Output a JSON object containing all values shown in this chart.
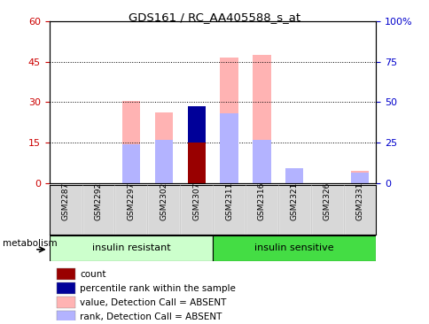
{
  "title": "GDS161 / RC_AA405588_s_at",
  "samples": [
    "GSM2287",
    "GSM2292",
    "GSM2297",
    "GSM2302",
    "GSM2307",
    "GSM2311",
    "GSM2316",
    "GSM2321",
    "GSM2326",
    "GSM2331"
  ],
  "value_absent": [
    0,
    0,
    30.5,
    26.0,
    15.5,
    46.5,
    47.5,
    5.0,
    0,
    4.5
  ],
  "rank_absent": [
    0,
    0,
    24.2,
    26.7,
    0,
    43.3,
    26.7,
    9.2,
    0,
    6.7
  ],
  "count": [
    0,
    0,
    0,
    0,
    15.0,
    0,
    0,
    0,
    0,
    0
  ],
  "percentile": [
    0,
    0,
    0,
    0,
    13.5,
    0,
    0,
    0,
    0,
    0
  ],
  "ylim": [
    0,
    60
  ],
  "y2lim": [
    0,
    100
  ],
  "yticks_left": [
    0,
    15,
    30,
    45,
    60
  ],
  "yticks_right": [
    0,
    25,
    50,
    75,
    100
  ],
  "ylabel_left_color": "#cc0000",
  "ylabel_right_color": "#0000cc",
  "color_value_absent": "#ffb3b3",
  "color_rank_absent": "#b3b3ff",
  "color_count": "#990000",
  "color_percentile": "#000099",
  "legend_items": [
    {
      "label": "count",
      "color": "#990000"
    },
    {
      "label": "percentile rank within the sample",
      "color": "#000099"
    },
    {
      "label": "value, Detection Call = ABSENT",
      "color": "#ffb3b3"
    },
    {
      "label": "rank, Detection Call = ABSENT",
      "color": "#b3b3ff"
    }
  ],
  "metabolism_label": "metabolism",
  "group1_label": "insulin resistant",
  "group2_label": "insulin sensitive",
  "group1_color": "#ccffcc",
  "group2_color": "#44dd44"
}
